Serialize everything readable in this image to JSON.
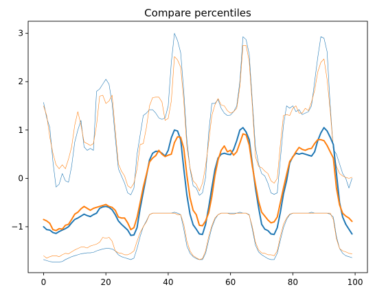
{
  "chart_data": {
    "type": "line",
    "title": "Compare percentiles",
    "xlabel": "",
    "ylabel": "",
    "xlim": [
      -4.95,
      103.95
    ],
    "ylim": [
      -1.95,
      3.25
    ],
    "xticks": [
      0,
      20,
      40,
      60,
      80,
      100
    ],
    "yticks": [
      -1,
      0,
      1,
      2,
      3
    ],
    "ytick_labels": [
      "−1",
      "0",
      "1",
      "2",
      "3"
    ],
    "grid": false,
    "legend": "none",
    "series": [
      {
        "color": "#1f77b4",
        "width": 2.0,
        "x": [
          0,
          1,
          2,
          3,
          4,
          5,
          6,
          7,
          8,
          9,
          10,
          11,
          12,
          13,
          14,
          15,
          16,
          17,
          18,
          19,
          20,
          21,
          22,
          23,
          24,
          25,
          26,
          27,
          28,
          29,
          30,
          31,
          32,
          33,
          34,
          35,
          36,
          37,
          38,
          39,
          40,
          41,
          42,
          43,
          44,
          45,
          46,
          47,
          48,
          49,
          50,
          51,
          52,
          53,
          54,
          55,
          56,
          57,
          58,
          59,
          60,
          61,
          62,
          63,
          64,
          65,
          66,
          67,
          68,
          69,
          70,
          71,
          72,
          73,
          74,
          75,
          76,
          77,
          78,
          79,
          80,
          81,
          82,
          83,
          84,
          85,
          86,
          87,
          88,
          89,
          90,
          91,
          92,
          93,
          94,
          95,
          96,
          97,
          98,
          99
        ],
        "y": [
          -1.0,
          -1.06,
          -1.07,
          -1.12,
          -1.14,
          -1.1,
          -1.07,
          -1.04,
          -1.0,
          -0.92,
          -0.85,
          -0.82,
          -0.78,
          -0.74,
          -0.77,
          -0.79,
          -0.75,
          -0.72,
          -0.62,
          -0.59,
          -0.58,
          -0.6,
          -0.65,
          -0.75,
          -0.88,
          -0.95,
          -1.01,
          -1.07,
          -1.18,
          -1.17,
          -1.02,
          -0.62,
          -0.28,
          0.05,
          0.38,
          0.52,
          0.56,
          0.56,
          0.52,
          0.46,
          0.58,
          0.84,
          1.0,
          0.98,
          0.8,
          0.2,
          -0.35,
          -0.74,
          -0.96,
          -1.05,
          -1.15,
          -1.16,
          -0.95,
          -0.6,
          -0.2,
          0.18,
          0.42,
          0.5,
          0.52,
          0.5,
          0.49,
          0.6,
          0.78,
          1.0,
          1.05,
          0.96,
          0.8,
          0.3,
          -0.2,
          -0.6,
          -0.95,
          -1.05,
          -1.08,
          -1.15,
          -1.16,
          -1.02,
          -0.7,
          -0.32,
          -0.05,
          0.32,
          0.45,
          0.52,
          0.5,
          0.52,
          0.5,
          0.48,
          0.46,
          0.55,
          0.78,
          0.94,
          1.05,
          0.98,
          0.85,
          0.7,
          0.1,
          -0.5,
          -0.8,
          -0.95,
          -1.05,
          -1.15
        ]
      },
      {
        "color": "#ff7f0e",
        "width": 2.0,
        "x": [
          0,
          1,
          2,
          3,
          4,
          5,
          6,
          7,
          8,
          9,
          10,
          11,
          12,
          13,
          14,
          15,
          16,
          17,
          18,
          19,
          20,
          21,
          22,
          23,
          24,
          25,
          26,
          27,
          28,
          29,
          30,
          31,
          32,
          33,
          34,
          35,
          36,
          37,
          38,
          39,
          40,
          41,
          42,
          43,
          44,
          45,
          46,
          47,
          48,
          49,
          50,
          51,
          52,
          53,
          54,
          55,
          56,
          57,
          58,
          59,
          60,
          61,
          62,
          63,
          64,
          65,
          66,
          67,
          68,
          69,
          70,
          71,
          72,
          73,
          74,
          75,
          76,
          77,
          78,
          79,
          80,
          81,
          82,
          83,
          84,
          85,
          86,
          87,
          88,
          89,
          90,
          91,
          92,
          93,
          94,
          95,
          96,
          97,
          98,
          99
        ],
        "y": [
          -0.85,
          -0.88,
          -0.93,
          -1.06,
          -1.08,
          -1.04,
          -1.05,
          -0.97,
          -0.95,
          -0.85,
          -0.74,
          -0.7,
          -0.63,
          -0.58,
          -0.62,
          -0.66,
          -0.62,
          -0.6,
          -0.58,
          -0.56,
          -0.54,
          -0.58,
          -0.6,
          -0.66,
          -0.8,
          -0.82,
          -0.82,
          -0.92,
          -1.06,
          -1.02,
          -0.81,
          -0.5,
          -0.18,
          0.08,
          0.34,
          0.42,
          0.47,
          0.58,
          0.5,
          0.45,
          0.48,
          0.5,
          0.74,
          0.86,
          0.85,
          0.62,
          0.06,
          -0.4,
          -0.66,
          -0.75,
          -0.97,
          -0.98,
          -0.88,
          -0.71,
          -0.38,
          0.06,
          0.38,
          0.58,
          0.67,
          0.55,
          0.58,
          0.48,
          0.55,
          0.73,
          0.92,
          0.9,
          0.69,
          0.25,
          -0.12,
          -0.47,
          -0.7,
          -0.78,
          -0.86,
          -0.92,
          -0.9,
          -0.8,
          -0.5,
          -0.2,
          0.08,
          0.35,
          0.44,
          0.55,
          0.64,
          0.6,
          0.58,
          0.61,
          0.62,
          0.72,
          0.8,
          0.8,
          0.78,
          0.68,
          0.55,
          0.42,
          -0.2,
          -0.55,
          -0.72,
          -0.78,
          -0.82,
          -0.89
        ]
      },
      {
        "color": "#1f77b4",
        "width": 0.6,
        "x": [
          0,
          1,
          2,
          3,
          4,
          5,
          6,
          7,
          8,
          9,
          10,
          11,
          12,
          13,
          14,
          15,
          16,
          17,
          18,
          19,
          20,
          21,
          22,
          23,
          24,
          25,
          26,
          27,
          28,
          29,
          30,
          31,
          32,
          33,
          34,
          35,
          36,
          37,
          38,
          39,
          40,
          41,
          42,
          43,
          44,
          45,
          46,
          47,
          48,
          49,
          50,
          51,
          52,
          53,
          54,
          55,
          56,
          57,
          58,
          59,
          60,
          61,
          62,
          63,
          64,
          65,
          66,
          67,
          68,
          69,
          70,
          71,
          72,
          73,
          74,
          75,
          76,
          77,
          78,
          79,
          80,
          81,
          82,
          83,
          84,
          85,
          86,
          87,
          88,
          89,
          90,
          91,
          92,
          93,
          94,
          95,
          96,
          97,
          98,
          99
        ],
        "y": [
          1.57,
          1.25,
          1.05,
          0.35,
          -0.18,
          -0.12,
          0.1,
          -0.05,
          -0.08,
          0.25,
          0.75,
          1.0,
          1.2,
          0.65,
          0.58,
          0.62,
          0.58,
          1.8,
          1.85,
          1.95,
          2.05,
          1.95,
          1.55,
          0.85,
          0.2,
          0.05,
          -0.1,
          -0.3,
          -0.34,
          -0.2,
          0.5,
          0.9,
          1.3,
          1.35,
          1.42,
          1.42,
          1.35,
          1.25,
          1.22,
          1.25,
          1.5,
          2.4,
          3.0,
          2.85,
          2.6,
          1.8,
          0.8,
          0.2,
          -0.15,
          -0.2,
          -0.35,
          -0.3,
          0.02,
          0.95,
          1.55,
          1.55,
          1.63,
          1.45,
          1.35,
          1.3,
          1.31,
          1.38,
          1.5,
          2.0,
          2.93,
          2.87,
          2.57,
          1.6,
          0.65,
          0.3,
          0.1,
          0.05,
          -0.1,
          -0.3,
          -0.33,
          -0.3,
          0.4,
          1.1,
          1.5,
          1.45,
          1.5,
          1.38,
          1.42,
          1.32,
          1.35,
          1.38,
          1.5,
          2.0,
          2.5,
          2.93,
          2.9,
          2.62,
          1.5,
          0.6,
          0.5,
          0.3,
          0.1,
          0.0,
          -0.2,
          0.0
        ]
      },
      {
        "color": "#ff7f0e",
        "width": 0.6,
        "x": [
          0,
          1,
          2,
          3,
          4,
          5,
          6,
          7,
          8,
          9,
          10,
          11,
          12,
          13,
          14,
          15,
          16,
          17,
          18,
          19,
          20,
          21,
          22,
          23,
          24,
          25,
          26,
          27,
          28,
          29,
          30,
          31,
          32,
          33,
          34,
          35,
          36,
          37,
          38,
          39,
          40,
          41,
          42,
          43,
          44,
          45,
          46,
          47,
          48,
          49,
          50,
          51,
          52,
          53,
          54,
          55,
          56,
          57,
          58,
          59,
          60,
          61,
          62,
          63,
          64,
          65,
          66,
          67,
          68,
          69,
          70,
          71,
          72,
          73,
          74,
          75,
          76,
          77,
          78,
          79,
          80,
          81,
          82,
          83,
          84,
          85,
          86,
          87,
          88,
          89,
          90,
          91,
          92,
          93,
          94,
          95,
          96,
          97,
          98,
          99
        ],
        "y": [
          1.5,
          1.3,
          0.85,
          0.52,
          0.28,
          0.2,
          0.28,
          0.2,
          0.4,
          0.65,
          1.1,
          1.38,
          1.1,
          0.75,
          0.72,
          0.68,
          0.72,
          1.1,
          1.7,
          1.72,
          1.55,
          1.6,
          1.72,
          1.0,
          0.3,
          0.15,
          0.05,
          -0.15,
          -0.2,
          -0.1,
          0.2,
          0.7,
          0.72,
          1.05,
          1.5,
          1.67,
          1.68,
          1.68,
          1.58,
          1.2,
          1.24,
          1.6,
          2.52,
          2.45,
          2.3,
          1.6,
          0.65,
          0.22,
          -0.05,
          -0.12,
          -0.26,
          -0.1,
          0.25,
          0.75,
          1.3,
          1.52,
          1.65,
          1.52,
          1.5,
          1.4,
          1.35,
          1.38,
          1.45,
          1.9,
          2.75,
          2.75,
          2.42,
          1.5,
          0.45,
          0.25,
          0.22,
          0.15,
          0.1,
          -0.05,
          -0.1,
          0.0,
          0.7,
          1.3,
          1.32,
          1.3,
          1.45,
          1.5,
          1.35,
          1.35,
          1.45,
          1.4,
          1.58,
          1.82,
          2.2,
          2.4,
          2.47,
          2.05,
          1.4,
          0.6,
          0.25,
          0.1,
          0.05,
          0.02,
          0.0,
          0.02
        ]
      },
      {
        "color": "#1f77b4",
        "width": 0.6,
        "x": [
          0,
          1,
          2,
          3,
          4,
          5,
          6,
          7,
          8,
          9,
          10,
          11,
          12,
          13,
          14,
          15,
          16,
          17,
          18,
          19,
          20,
          21,
          22,
          23,
          24,
          25,
          26,
          27,
          28,
          29,
          30,
          31,
          32,
          33,
          34,
          35,
          36,
          37,
          38,
          39,
          40,
          41,
          42,
          43,
          44,
          45,
          46,
          47,
          48,
          49,
          50,
          51,
          52,
          53,
          54,
          55,
          56,
          57,
          58,
          59,
          60,
          61,
          62,
          63,
          64,
          65,
          66,
          67,
          68,
          69,
          70,
          71,
          72,
          73,
          74,
          75,
          76,
          77,
          78,
          79,
          80,
          81,
          82,
          83,
          84,
          85,
          86,
          87,
          88,
          89,
          90,
          91,
          92,
          93,
          94,
          95,
          96,
          97,
          98,
          99
        ],
        "y": [
          -1.68,
          -1.7,
          -1.72,
          -1.73,
          -1.73,
          -1.73,
          -1.72,
          -1.68,
          -1.65,
          -1.62,
          -1.6,
          -1.58,
          -1.56,
          -1.55,
          -1.54,
          -1.54,
          -1.53,
          -1.5,
          -1.48,
          -1.46,
          -1.45,
          -1.45,
          -1.46,
          -1.5,
          -1.58,
          -1.62,
          -1.64,
          -1.66,
          -1.68,
          -1.65,
          -1.45,
          -1.2,
          -1.0,
          -0.88,
          -0.75,
          -0.72,
          -0.72,
          -0.72,
          -0.72,
          -0.72,
          -0.72,
          -0.72,
          -0.7,
          -0.72,
          -0.75,
          -1.05,
          -1.4,
          -1.55,
          -1.62,
          -1.66,
          -1.68,
          -1.68,
          -1.55,
          -1.28,
          -1.02,
          -0.85,
          -0.75,
          -0.72,
          -0.72,
          -0.72,
          -0.72,
          -0.72,
          -0.72,
          -0.7,
          -0.72,
          -0.72,
          -0.75,
          -1.05,
          -1.38,
          -1.52,
          -1.58,
          -1.62,
          -1.66,
          -1.68,
          -1.68,
          -1.55,
          -1.28,
          -1.02,
          -0.85,
          -0.75,
          -0.72,
          -0.72,
          -0.72,
          -0.72,
          -0.72,
          -0.72,
          -0.7,
          -0.72,
          -0.72,
          -0.72,
          -0.72,
          -0.72,
          -0.74,
          -0.8,
          -1.2,
          -1.45,
          -1.55,
          -1.6,
          -1.62,
          -1.64
        ]
      },
      {
        "color": "#ff7f0e",
        "width": 0.6,
        "x": [
          0,
          1,
          2,
          3,
          4,
          5,
          6,
          7,
          8,
          9,
          10,
          11,
          12,
          13,
          14,
          15,
          16,
          17,
          18,
          19,
          20,
          21,
          22,
          23,
          24,
          25,
          26,
          27,
          28,
          29,
          30,
          31,
          32,
          33,
          34,
          35,
          36,
          37,
          38,
          39,
          40,
          41,
          42,
          43,
          44,
          45,
          46,
          47,
          48,
          49,
          50,
          51,
          52,
          53,
          54,
          55,
          56,
          57,
          58,
          59,
          60,
          61,
          62,
          63,
          64,
          65,
          66,
          67,
          68,
          69,
          70,
          71,
          72,
          73,
          74,
          75,
          76,
          77,
          78,
          79,
          80,
          81,
          82,
          83,
          84,
          85,
          86,
          87,
          88,
          89,
          90,
          91,
          92,
          93,
          94,
          95,
          96,
          97,
          98,
          99
        ],
        "y": [
          -1.6,
          -1.65,
          -1.62,
          -1.6,
          -1.6,
          -1.62,
          -1.58,
          -1.55,
          -1.56,
          -1.52,
          -1.48,
          -1.45,
          -1.42,
          -1.42,
          -1.44,
          -1.4,
          -1.38,
          -1.36,
          -1.32,
          -1.22,
          -1.24,
          -1.22,
          -1.3,
          -1.5,
          -1.54,
          -1.55,
          -1.58,
          -1.58,
          -1.55,
          -1.5,
          -1.3,
          -1.12,
          -1.0,
          -0.9,
          -0.75,
          -0.72,
          -0.72,
          -0.72,
          -0.72,
          -0.72,
          -0.72,
          -0.72,
          -0.72,
          -0.75,
          -0.75,
          -0.95,
          -1.3,
          -1.5,
          -1.6,
          -1.64,
          -1.68,
          -1.66,
          -1.5,
          -1.2,
          -0.98,
          -0.82,
          -0.75,
          -0.72,
          -0.72,
          -0.72,
          -0.74,
          -0.74,
          -0.72,
          -0.72,
          -0.72,
          -0.72,
          -0.76,
          -1.0,
          -1.32,
          -1.48,
          -1.54,
          -1.55,
          -1.58,
          -1.58,
          -1.6,
          -1.5,
          -1.2,
          -0.95,
          -0.82,
          -0.74,
          -0.72,
          -0.72,
          -0.72,
          -0.72,
          -0.72,
          -0.72,
          -0.72,
          -0.72,
          -0.72,
          -0.72,
          -0.72,
          -0.72,
          -0.72,
          -0.85,
          -1.25,
          -1.45,
          -1.5,
          -1.52,
          -1.55,
          -1.56
        ]
      }
    ]
  }
}
